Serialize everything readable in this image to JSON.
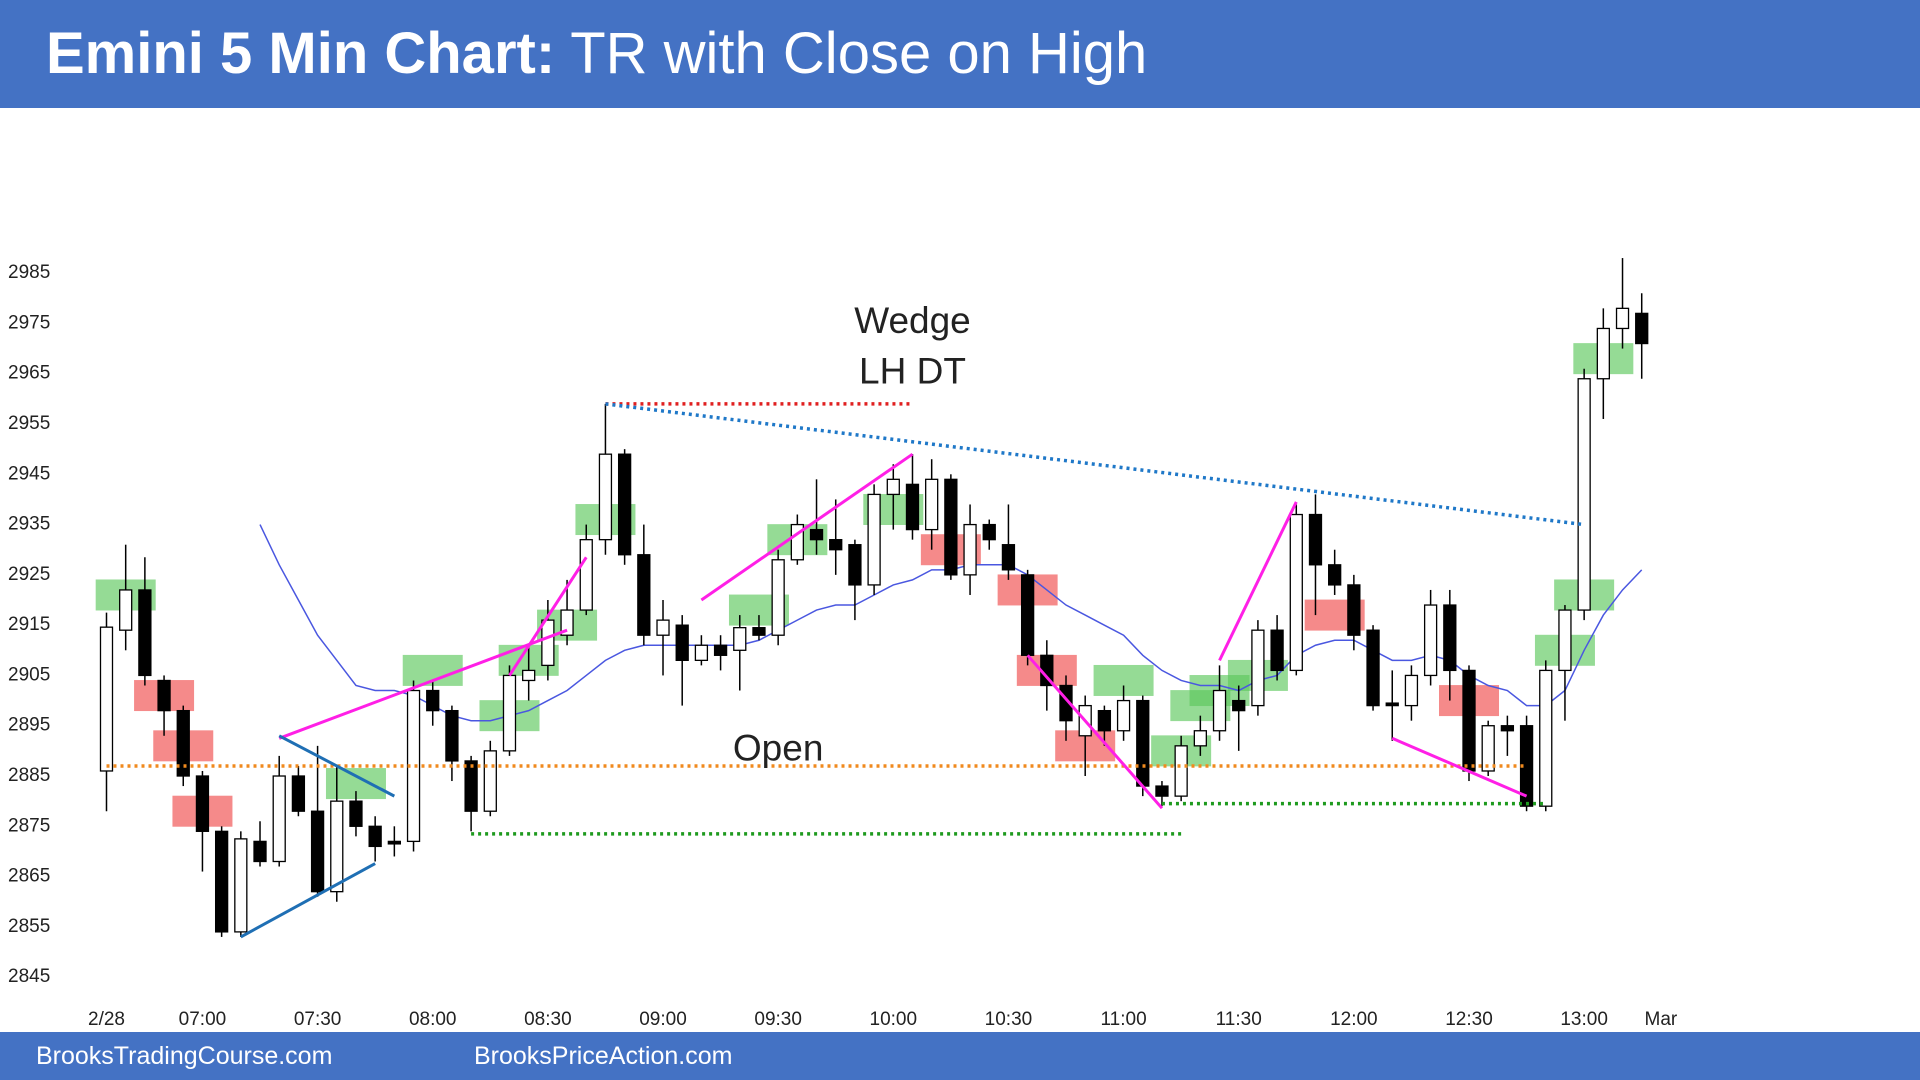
{
  "chart_data": {
    "type": "candlestick",
    "title": "Emini 5 Min Chart:",
    "subtitle": "TR with Close on High",
    "xlim": [
      -0.5,
      81.5
    ],
    "xticks": [
      {
        "value": 0,
        "label": "2/28"
      },
      {
        "value": 5,
        "label": "07:00"
      },
      {
        "value": 11,
        "label": "07:30"
      },
      {
        "value": 17,
        "label": "08:00"
      },
      {
        "value": 23,
        "label": "08:30"
      },
      {
        "value": 29,
        "label": "09:00"
      },
      {
        "value": 35,
        "label": "09:30"
      },
      {
        "value": 41,
        "label": "10:00"
      },
      {
        "value": 47,
        "label": "10:30"
      },
      {
        "value": 53,
        "label": "11:00"
      },
      {
        "value": 59,
        "label": "11:30"
      },
      {
        "value": 65,
        "label": "12:00"
      },
      {
        "value": 71,
        "label": "12:30"
      },
      {
        "value": 77,
        "label": "13:00"
      },
      {
        "value": 81,
        "label": "Mar"
      }
    ],
    "ylim": [
      2840,
      2990
    ],
    "yticks": [
      2845,
      2855,
      2865,
      2875,
      2885,
      2895,
      2905,
      2915,
      2925,
      2935,
      2945,
      2955,
      2965,
      2975,
      2985
    ],
    "up_color": "#ffffff",
    "down_color": "#000000",
    "outline_color": "#000000",
    "open": [
      2886,
      2914,
      2922,
      2904,
      2898,
      2885,
      2874,
      2854,
      2872,
      2868,
      2885,
      2878,
      2862,
      2880,
      2875,
      2872,
      2872,
      2902,
      2898,
      2888,
      2878,
      2890,
      2904,
      2907,
      2913,
      2918,
      2932,
      2949,
      2929,
      2913,
      2915,
      2908,
      2911,
      2910,
      2914.5,
      2913,
      2928,
      2934,
      2932,
      2931,
      2923,
      2941,
      2943,
      2934,
      2944,
      2925,
      2935,
      2931,
      2925,
      2909,
      2903,
      2893,
      2898,
      2894,
      2900,
      2883,
      2881,
      2891,
      2894,
      2900,
      2899,
      2914,
      2906,
      2937,
      2927,
      2923,
      2914,
      2899.5,
      2899,
      2905,
      2919,
      2906,
      2886,
      2895,
      2895,
      2879,
      2906,
      2918,
      2964,
      2974,
      2977
    ],
    "high": [
      2917.5,
      2931,
      2928.5,
      2905,
      2899,
      2886,
      2875,
      2874,
      2876,
      2889,
      2887,
      2891,
      2887,
      2882,
      2877,
      2875,
      2904,
      2904,
      2899,
      2889,
      2892,
      2907,
      2911,
      2920,
      2924,
      2935,
      2959,
      2950,
      2935,
      2920,
      2917,
      2913,
      2913,
      2917,
      2917,
      2930,
      2937,
      2944,
      2940,
      2932,
      2943,
      2947,
      2949,
      2948,
      2945,
      2939,
      2936,
      2939,
      2926,
      2912,
      2905,
      2901,
      2899,
      2903,
      2901,
      2884,
      2893,
      2897,
      2907,
      2903,
      2916,
      2917,
      2939,
      2941,
      2930,
      2925,
      2915,
      2906,
      2907,
      2922,
      2922,
      2907,
      2896,
      2897,
      2897,
      2908,
      2919,
      2966,
      2978,
      2988,
      2981
    ],
    "low": [
      2878,
      2910,
      2903,
      2893,
      2883,
      2866,
      2853,
      2853,
      2867,
      2867,
      2877,
      2861,
      2860,
      2873,
      2868,
      2869,
      2870,
      2895,
      2884,
      2874,
      2877,
      2889,
      2900,
      2904,
      2911,
      2917,
      2929,
      2927,
      2911,
      2905,
      2899,
      2907,
      2906,
      2902,
      2912,
      2911,
      2927,
      2929,
      2925,
      2916,
      2921,
      2934,
      2932,
      2930,
      2924,
      2921,
      2930,
      2924,
      2907,
      2898,
      2892,
      2885,
      2891,
      2892,
      2881,
      2879,
      2880,
      2889,
      2892,
      2890,
      2897,
      2904,
      2905,
      2917,
      2921,
      2910,
      2898,
      2892,
      2896,
      2903,
      2900,
      2884,
      2885,
      2889,
      2878,
      2878,
      2896,
      2916,
      2956,
      2970,
      2964
    ],
    "close": [
      2914.6,
      2922,
      2905,
      2898,
      2885,
      2874,
      2854,
      2872.5,
      2868,
      2885,
      2878,
      2862,
      2880,
      2875,
      2871,
      2871.5,
      2902,
      2898,
      2888,
      2878,
      2890,
      2905,
      2906,
      2916,
      2918,
      2932,
      2949,
      2929,
      2913,
      2916,
      2908,
      2911,
      2909,
      2914.5,
      2913,
      2928,
      2935,
      2932,
      2930,
      2923,
      2941,
      2944,
      2934,
      2944,
      2925,
      2935,
      2932,
      2926,
      2909,
      2903,
      2896,
      2899,
      2894,
      2900,
      2883,
      2881,
      2891,
      2894,
      2902,
      2898,
      2914,
      2906,
      2937,
      2927,
      2923,
      2913,
      2899,
      2899,
      2905,
      2919,
      2906,
      2886,
      2895,
      2894,
      2879,
      2906,
      2918,
      2964,
      2974,
      2978,
      2971
    ],
    "ema_color": "#4a57e0",
    "ema": [
      null,
      null,
      null,
      null,
      null,
      null,
      null,
      null,
      2935,
      2927,
      2920,
      2913,
      2908,
      2903,
      2902,
      2902,
      2901,
      2899,
      2897,
      2896,
      2896,
      2897,
      2898,
      2900,
      2902,
      2905,
      2908,
      2910,
      2911,
      2911,
      2911,
      2911,
      2911,
      2911,
      2912,
      2914,
      2916,
      2918,
      2919,
      2919,
      2921,
      2923,
      2924,
      2926,
      2926,
      2927,
      2927,
      2927,
      2925,
      2922,
      2919,
      2917,
      2915,
      2913,
      2909,
      2906,
      2904,
      2903,
      2903,
      2902,
      2904,
      2905,
      2909,
      2911,
      2912,
      2912,
      2910,
      2908,
      2908,
      2909,
      2908,
      2905,
      2903,
      2902,
      2899,
      2899,
      2902,
      2910,
      2917,
      2922,
      2926
    ],
    "highlights": [
      {
        "color": "#5cc85c",
        "bars": [
          1,
          13,
          17,
          21,
          22,
          24,
          26,
          34,
          36,
          41,
          53,
          56,
          57,
          58,
          60,
          76,
          77,
          78
        ],
        "prices": [
          2921,
          2883.5,
          2906,
          2897,
          2908,
          2915,
          2936,
          2918,
          2932,
          2938,
          2904,
          2890,
          2899,
          2902,
          2905,
          2910,
          2921,
          2968
        ]
      },
      {
        "color": "#f04b4b",
        "bars": [
          3,
          4,
          5,
          44,
          48,
          49,
          51,
          64,
          71
        ],
        "prices": [
          2901,
          2891,
          2878,
          2930,
          2922,
          2906,
          2891,
          2917,
          2900
        ]
      }
    ],
    "lines": [
      {
        "color": "#f08a1e",
        "dash": "dotted",
        "points": [
          [
            0,
            2887
          ],
          [
            74,
            2887
          ]
        ]
      },
      {
        "color": "#1e9a1e",
        "dash": "dotted",
        "points": [
          [
            19,
            2873.5
          ],
          [
            56,
            2873.5
          ]
        ]
      },
      {
        "color": "#1e9a1e",
        "dash": "dotted",
        "points": [
          [
            55,
            2879.5
          ],
          [
            75,
            2879.5
          ]
        ]
      },
      {
        "color": "#e02020",
        "dash": "dotted",
        "points": [
          [
            26,
            2959
          ],
          [
            42,
            2959
          ]
        ]
      },
      {
        "color": "#1f78c8",
        "dash": "dotted",
        "points": [
          [
            26,
            2959
          ],
          [
            77,
            2935
          ]
        ]
      },
      {
        "color": "#ff1fe6",
        "dash": "solid",
        "points": [
          [
            9,
            2892.5
          ],
          [
            24,
            2914
          ]
        ]
      },
      {
        "color": "#ff1fe6",
        "dash": "solid",
        "points": [
          [
            21,
            2905
          ],
          [
            25,
            2928.5
          ]
        ]
      },
      {
        "color": "#ff1fe6",
        "dash": "solid",
        "points": [
          [
            31,
            2920
          ],
          [
            42,
            2949
          ]
        ]
      },
      {
        "color": "#ff1fe6",
        "dash": "solid",
        "points": [
          [
            48,
            2909
          ],
          [
            55,
            2878.6
          ]
        ]
      },
      {
        "color": "#ff1fe6",
        "dash": "solid",
        "points": [
          [
            58,
            2908
          ],
          [
            62,
            2939.5
          ]
        ]
      },
      {
        "color": "#ff1fe6",
        "dash": "solid",
        "points": [
          [
            67,
            2892.5
          ],
          [
            74,
            2881
          ]
        ]
      },
      {
        "color": "#1f6fb4",
        "dash": "solid",
        "points": [
          [
            9,
            2893
          ],
          [
            15,
            2881
          ]
        ]
      },
      {
        "color": "#1f6fb4",
        "dash": "solid",
        "points": [
          [
            7,
            2853
          ],
          [
            14,
            2867.6
          ]
        ]
      }
    ],
    "annotations": [
      {
        "text": "Wedge",
        "x": 42,
        "y": 2975,
        "color": "#ff1fe6"
      },
      {
        "text": "LH DT",
        "x": 42,
        "y": 2965,
        "color": "#e02020"
      },
      {
        "text": "Open",
        "x": 35,
        "y": 2890,
        "color": "#c8691e"
      }
    ]
  },
  "footer": {
    "left": "BrooksTradingCourse.com",
    "right": "BrooksPriceAction.com"
  }
}
